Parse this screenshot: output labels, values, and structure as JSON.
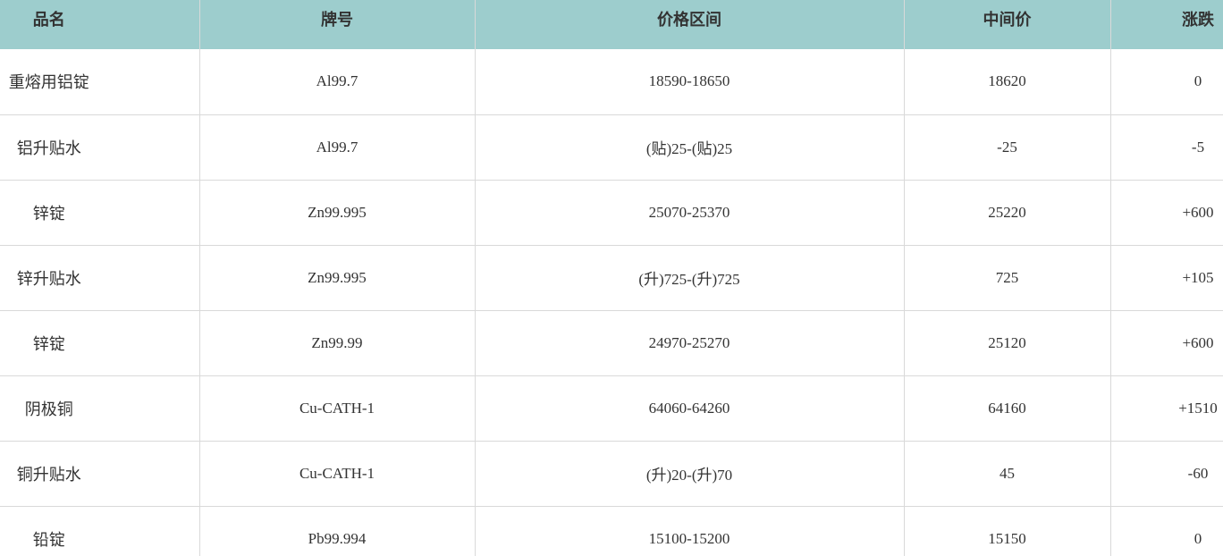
{
  "table": {
    "header": [
      "品名",
      "牌号",
      "价格区间",
      "中间价",
      "涨跌"
    ],
    "rows": [
      [
        "重熔用铝锭",
        "Al99.7",
        "18590-18650",
        "18620",
        "0"
      ],
      [
        "铝升贴水",
        "Al99.7",
        "(贴)25-(贴)25",
        "-25",
        "-5"
      ],
      [
        "锌锭",
        "Zn99.995",
        "25070-25370",
        "25220",
        "+600"
      ],
      [
        "锌升贴水",
        "Zn99.995",
        "(升)725-(升)725",
        "725",
        "+105"
      ],
      [
        "锌锭",
        "Zn99.99",
        "24970-25270",
        "25120",
        "+600"
      ],
      [
        "阴极铜",
        "Cu-CATH-1",
        "64060-64260",
        "64160",
        "+1510"
      ],
      [
        "铜升贴水",
        "Cu-CATH-1",
        "(升)20-(升)70",
        "45",
        "-60"
      ],
      [
        "铅锭",
        "Pb99.994",
        "15100-15200",
        "15150",
        "0"
      ]
    ]
  }
}
